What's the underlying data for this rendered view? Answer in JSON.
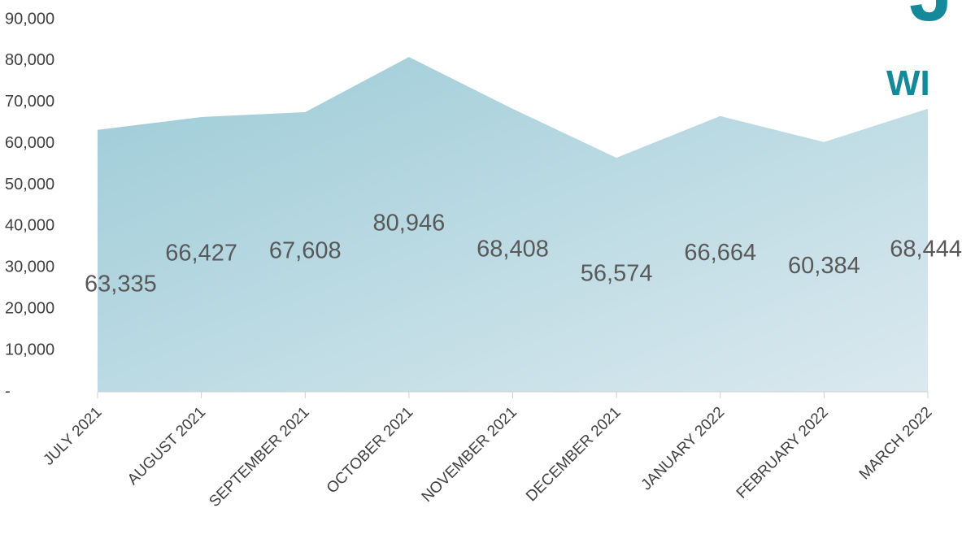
{
  "chart_data": {
    "type": "area",
    "annotations": [
      "J",
      "WI"
    ],
    "categories": [
      "JULY 2021",
      "AUGUST 2021",
      "SEPTEMBER 2021",
      "OCTOBER 2021",
      "NOVEMBER 2021",
      "DECEMBER 2021",
      "JANUARY 2022",
      "FEBRUARY 2022",
      "MARCH 2022"
    ],
    "values": [
      63335,
      66427,
      67608,
      80946,
      68408,
      56574,
      66664,
      60384,
      68444
    ],
    "value_labels": [
      "63,335",
      "66,427",
      "67,608",
      "80,946",
      "68,408",
      "56,574",
      "66,664",
      "60,384",
      "68,444"
    ],
    "color": "#9ccbd7",
    "ylim": [
      0,
      90000
    ],
    "yticks": [
      {
        "value": 0,
        "label": "-"
      },
      {
        "value": 10000,
        "label": "10,000"
      },
      {
        "value": 20000,
        "label": "20,000"
      },
      {
        "value": 30000,
        "label": "30,000"
      },
      {
        "value": 40000,
        "label": "40,000"
      },
      {
        "value": 50000,
        "label": "50,000"
      },
      {
        "value": 60000,
        "label": "60,000"
      },
      {
        "value": 70000,
        "label": "70,000"
      },
      {
        "value": 80000,
        "label": "80,000"
      },
      {
        "value": 90000,
        "label": "90,000"
      }
    ],
    "grid": false
  }
}
